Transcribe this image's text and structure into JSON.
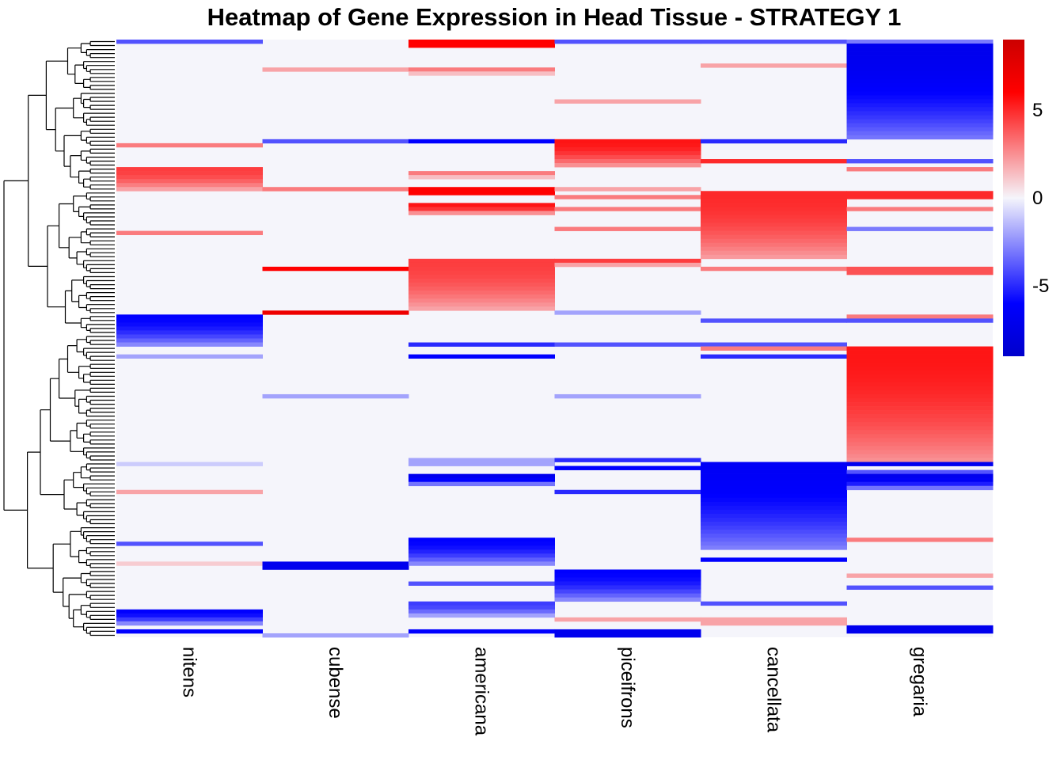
{
  "chart_data": {
    "type": "heatmap",
    "title": "Heatmap of Gene Expression in Head Tissue - STRATEGY 1",
    "columns": [
      "nitens",
      "cubense",
      "americana",
      "piceifrons",
      "cancellata",
      "gregaria"
    ],
    "color_scale": {
      "min": -9,
      "max": 9,
      "stops": [
        {
          "value": -9,
          "color": "#0000cc"
        },
        {
          "value": -6,
          "color": "#0000ff"
        },
        {
          "value": 0,
          "color": "#f5f5fb"
        },
        {
          "value": 6,
          "color": "#ff0000"
        },
        {
          "value": 9,
          "color": "#cc0000"
        }
      ],
      "ticks": [
        {
          "value": 5,
          "label": "5"
        },
        {
          "value": 0,
          "label": "0"
        },
        {
          "value": -5,
          "label": "-5"
        }
      ]
    },
    "n_genes": 150,
    "background_value": 0,
    "blocks": [
      {
        "col": 0,
        "start": 0,
        "end": 1,
        "value": -4
      },
      {
        "col": 0,
        "start": 26,
        "end": 27,
        "value": 3
      },
      {
        "col": 0,
        "start": 32,
        "end": 38,
        "value": 4.5,
        "gradient": true
      },
      {
        "col": 0,
        "start": 48,
        "end": 49,
        "value": 3
      },
      {
        "col": 0,
        "start": 69,
        "end": 77,
        "value": -6,
        "gradient": true
      },
      {
        "col": 0,
        "start": 79,
        "end": 80,
        "value": -2
      },
      {
        "col": 0,
        "start": 106,
        "end": 107,
        "value": -1
      },
      {
        "col": 0,
        "start": 113,
        "end": 114,
        "value": 2
      },
      {
        "col": 0,
        "start": 126,
        "end": 127,
        "value": -4
      },
      {
        "col": 0,
        "start": 131,
        "end": 132,
        "value": 1
      },
      {
        "col": 0,
        "start": 143,
        "end": 147,
        "value": -6,
        "gradient": true
      },
      {
        "col": 0,
        "start": 148,
        "end": 149,
        "value": -6
      },
      {
        "col": 1,
        "start": 7,
        "end": 8,
        "value": 2
      },
      {
        "col": 1,
        "start": 25,
        "end": 26,
        "value": -4
      },
      {
        "col": 1,
        "start": 37,
        "end": 38,
        "value": 3
      },
      {
        "col": 1,
        "start": 57,
        "end": 58,
        "value": 6
      },
      {
        "col": 1,
        "start": 68,
        "end": 69,
        "value": 7
      },
      {
        "col": 1,
        "start": 89,
        "end": 90,
        "value": -2
      },
      {
        "col": 1,
        "start": 131,
        "end": 133,
        "value": -7
      },
      {
        "col": 1,
        "start": 149,
        "end": 150,
        "value": -2
      },
      {
        "col": 2,
        "start": 0,
        "end": 2,
        "value": 6
      },
      {
        "col": 2,
        "start": 7,
        "end": 9,
        "value": 3,
        "gradient": true
      },
      {
        "col": 2,
        "start": 25,
        "end": 26,
        "value": -6
      },
      {
        "col": 2,
        "start": 33,
        "end": 35,
        "value": 3,
        "gradient": true
      },
      {
        "col": 2,
        "start": 37,
        "end": 39,
        "value": 6
      },
      {
        "col": 2,
        "start": 41,
        "end": 44,
        "value": 5.5,
        "gradient": true
      },
      {
        "col": 2,
        "start": 55,
        "end": 68,
        "value": 4.5,
        "gradient": true
      },
      {
        "col": 2,
        "start": 76,
        "end": 77,
        "value": -5
      },
      {
        "col": 2,
        "start": 79,
        "end": 80,
        "value": -6
      },
      {
        "col": 2,
        "start": 105,
        "end": 107,
        "value": -2
      },
      {
        "col": 2,
        "start": 109,
        "end": 112,
        "value": -7,
        "gradient": true
      },
      {
        "col": 2,
        "start": 125,
        "end": 132,
        "value": -6,
        "gradient": true
      },
      {
        "col": 2,
        "start": 136,
        "end": 137,
        "value": -4
      },
      {
        "col": 2,
        "start": 141,
        "end": 145,
        "value": -4.5,
        "gradient": true
      },
      {
        "col": 2,
        "start": 148,
        "end": 149,
        "value": -6
      },
      {
        "col": 3,
        "start": 0,
        "end": 1,
        "value": -4
      },
      {
        "col": 3,
        "start": 15,
        "end": 16,
        "value": 2
      },
      {
        "col": 3,
        "start": 25,
        "end": 32,
        "value": 5.5,
        "gradient": true
      },
      {
        "col": 3,
        "start": 37,
        "end": 38,
        "value": 2
      },
      {
        "col": 3,
        "start": 39,
        "end": 40,
        "value": 3
      },
      {
        "col": 3,
        "start": 42,
        "end": 43,
        "value": 3
      },
      {
        "col": 3,
        "start": 47,
        "end": 48,
        "value": 3
      },
      {
        "col": 3,
        "start": 55,
        "end": 57,
        "value": 4.5,
        "gradient": true
      },
      {
        "col": 3,
        "start": 68,
        "end": 69,
        "value": -2
      },
      {
        "col": 3,
        "start": 76,
        "end": 77,
        "value": -4
      },
      {
        "col": 3,
        "start": 89,
        "end": 90,
        "value": -2
      },
      {
        "col": 3,
        "start": 105,
        "end": 106,
        "value": -5
      },
      {
        "col": 3,
        "start": 107,
        "end": 108,
        "value": -6
      },
      {
        "col": 3,
        "start": 113,
        "end": 114,
        "value": -5
      },
      {
        "col": 3,
        "start": 133,
        "end": 141,
        "value": -6,
        "gradient": true
      },
      {
        "col": 3,
        "start": 145,
        "end": 146,
        "value": 2
      },
      {
        "col": 3,
        "start": 148,
        "end": 150,
        "value": -7
      },
      {
        "col": 4,
        "start": 0,
        "end": 1,
        "value": -4
      },
      {
        "col": 4,
        "start": 6,
        "end": 7,
        "value": 2
      },
      {
        "col": 4,
        "start": 25,
        "end": 26,
        "value": -5
      },
      {
        "col": 4,
        "start": 30,
        "end": 31,
        "value": 5
      },
      {
        "col": 4,
        "start": 38,
        "end": 55,
        "value": 5,
        "gradient": true
      },
      {
        "col": 4,
        "start": 57,
        "end": 58,
        "value": 3
      },
      {
        "col": 4,
        "start": 70,
        "end": 71,
        "value": -4
      },
      {
        "col": 4,
        "start": 76,
        "end": 77,
        "value": -4
      },
      {
        "col": 4,
        "start": 77,
        "end": 78,
        "value": 3
      },
      {
        "col": 4,
        "start": 79,
        "end": 80,
        "value": -5
      },
      {
        "col": 4,
        "start": 106,
        "end": 128,
        "value": -6.5,
        "gradient": true
      },
      {
        "col": 4,
        "start": 130,
        "end": 131,
        "value": -6
      },
      {
        "col": 4,
        "start": 141,
        "end": 142,
        "value": -4
      },
      {
        "col": 4,
        "start": 145,
        "end": 147,
        "value": 2
      },
      {
        "col": 5,
        "start": 0,
        "end": 1,
        "value": -3
      },
      {
        "col": 5,
        "start": 1,
        "end": 25,
        "value": -7,
        "gradient": true
      },
      {
        "col": 5,
        "start": 30,
        "end": 31,
        "value": -4
      },
      {
        "col": 5,
        "start": 32,
        "end": 33,
        "value": 3
      },
      {
        "col": 5,
        "start": 38,
        "end": 40,
        "value": 5
      },
      {
        "col": 5,
        "start": 42,
        "end": 43,
        "value": 3
      },
      {
        "col": 5,
        "start": 47,
        "end": 48,
        "value": -3
      },
      {
        "col": 5,
        "start": 57,
        "end": 59,
        "value": 4
      },
      {
        "col": 5,
        "start": 69,
        "end": 70,
        "value": 3
      },
      {
        "col": 5,
        "start": 70,
        "end": 71,
        "value": -4
      },
      {
        "col": 5,
        "start": 77,
        "end": 106,
        "value": 5.5,
        "gradient": true
      },
      {
        "col": 5,
        "start": 106,
        "end": 107,
        "value": -7
      },
      {
        "col": 5,
        "start": 108,
        "end": 109,
        "value": -4
      },
      {
        "col": 5,
        "start": 109,
        "end": 113,
        "value": -7,
        "gradient": true
      },
      {
        "col": 5,
        "start": 125,
        "end": 126,
        "value": 3
      },
      {
        "col": 5,
        "start": 134,
        "end": 135,
        "value": 2
      },
      {
        "col": 5,
        "start": 137,
        "end": 138,
        "value": -4
      },
      {
        "col": 5,
        "start": 147,
        "end": 149,
        "value": -7
      }
    ]
  }
}
